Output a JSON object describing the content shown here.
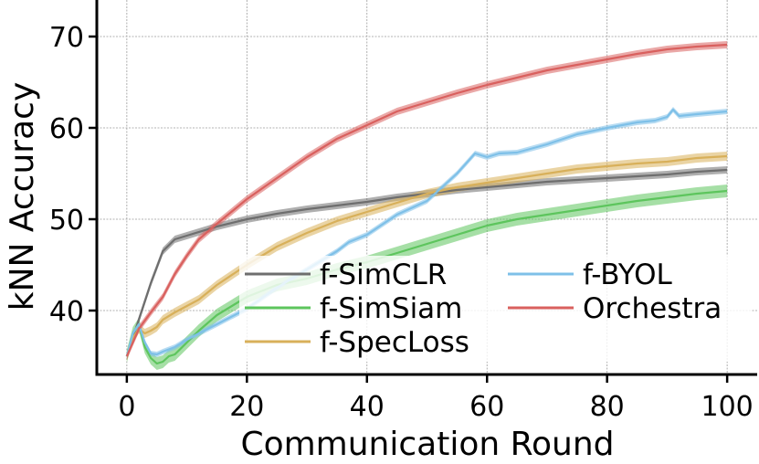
{
  "chart_data": {
    "type": "line",
    "xlabel": "Communication Round",
    "ylabel": "kNN Accuracy",
    "xlim": [
      -5,
      105
    ],
    "ylim": [
      33,
      74
    ],
    "xticks": [
      0,
      20,
      40,
      60,
      80,
      100
    ],
    "yticks": [
      40,
      50,
      60,
      70
    ],
    "grid": true,
    "legend_position": "lower-right",
    "series": [
      {
        "name": "f-SimCLR",
        "color": "#6e6e6e",
        "x": [
          0,
          2,
          4,
          6,
          8,
          10,
          15,
          20,
          25,
          30,
          35,
          40,
          45,
          50,
          55,
          60,
          65,
          70,
          75,
          80,
          85,
          90,
          95,
          100
        ],
        "y": [
          35,
          39,
          43,
          46.5,
          47.8,
          48.2,
          49.2,
          50,
          50.6,
          51.1,
          51.5,
          51.9,
          52.4,
          52.8,
          53.2,
          53.5,
          53.8,
          54.1,
          54.3,
          54.5,
          54.7,
          54.9,
          55.2,
          55.4
        ],
        "band": 0.4
      },
      {
        "name": "f-SimSiam",
        "color": "#5dc55d",
        "x": [
          0,
          1,
          2,
          3,
          4,
          5,
          6,
          7,
          8,
          10,
          12,
          15,
          20,
          25,
          30,
          35,
          40,
          45,
          50,
          55,
          60,
          65,
          70,
          75,
          80,
          85,
          90,
          95,
          100
        ],
        "y": [
          35,
          37.5,
          38.5,
          36,
          34.8,
          34.2,
          34.4,
          35,
          35.2,
          36.5,
          37.8,
          39.5,
          41.5,
          42.8,
          43.5,
          44.5,
          45.3,
          46.3,
          47.3,
          48.3,
          49.3,
          50,
          50.5,
          51,
          51.5,
          52,
          52.4,
          52.8,
          53.1
        ],
        "band": 0.7
      },
      {
        "name": "f-SpecLoss",
        "color": "#d8b05a",
        "x": [
          0,
          1,
          2,
          3,
          4,
          5,
          6,
          8,
          10,
          12,
          15,
          20,
          25,
          30,
          35,
          40,
          45,
          50,
          55,
          60,
          65,
          70,
          75,
          80,
          85,
          90,
          95,
          100
        ],
        "y": [
          35,
          37,
          38,
          37.5,
          37.8,
          38.2,
          39,
          39.8,
          40.5,
          41.2,
          42.8,
          45,
          47,
          48.5,
          49.8,
          50.8,
          51.8,
          52.8,
          53.5,
          54,
          54.5,
          55,
          55.5,
          55.8,
          56.1,
          56.3,
          56.7,
          56.9
        ],
        "band": 0.5
      },
      {
        "name": "f-BYOL",
        "color": "#7ec0e8",
        "x": [
          0,
          1,
          2,
          3,
          4,
          5,
          6,
          8,
          10,
          12,
          15,
          20,
          25,
          30,
          35,
          37,
          40,
          45,
          50,
          55,
          58,
          60,
          62,
          65,
          70,
          75,
          80,
          85,
          88,
          90,
          91,
          92,
          95,
          100
        ],
        "y": [
          35,
          37.5,
          38.5,
          36.5,
          35.3,
          35.2,
          35.5,
          36,
          36.8,
          37.5,
          38.5,
          40.2,
          42.5,
          44.5,
          46.5,
          47.5,
          48.3,
          50.5,
          52,
          55,
          57.2,
          56.8,
          57.2,
          57.3,
          58.2,
          59.3,
          60,
          60.6,
          60.8,
          61.2,
          62,
          61.3,
          61.5,
          61.8
        ],
        "band": 0.3
      },
      {
        "name": "Orchestra",
        "color": "#d9605e",
        "x": [
          0,
          2,
          4,
          6,
          8,
          10,
          12,
          15,
          20,
          25,
          30,
          35,
          40,
          45,
          50,
          55,
          60,
          65,
          70,
          75,
          80,
          85,
          90,
          95,
          100
        ],
        "y": [
          35,
          38,
          39.8,
          41.5,
          44,
          46,
          47.8,
          49.5,
          52.2,
          54.5,
          56.8,
          58.8,
          60.3,
          61.8,
          62.8,
          63.8,
          64.7,
          65.5,
          66.3,
          66.9,
          67.5,
          68.1,
          68.6,
          68.9,
          69.1
        ],
        "band": 0.4
      }
    ]
  }
}
